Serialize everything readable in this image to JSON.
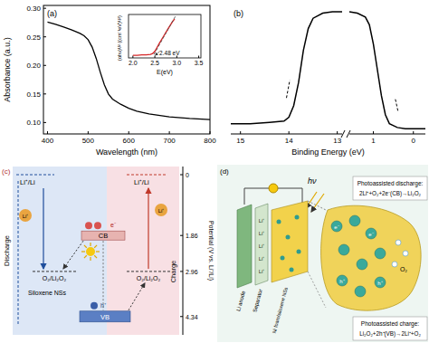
{
  "chart_data": [
    {
      "type": "line",
      "title": "(a)",
      "x_label": "Wavelength (nm)",
      "y_label": "Absorbance (a.u.)",
      "x": [
        400,
        420,
        440,
        460,
        480,
        490,
        500,
        510,
        520,
        530,
        540,
        550,
        560,
        580,
        600,
        620,
        650,
        700,
        750,
        800
      ],
      "values": [
        0.276,
        0.272,
        0.267,
        0.262,
        0.256,
        0.252,
        0.245,
        0.232,
        0.212,
        0.188,
        0.166,
        0.15,
        0.141,
        0.132,
        0.125,
        0.12,
        0.115,
        0.11,
        0.107,
        0.105
      ],
      "color": "#000000",
      "xlim": [
        390,
        800
      ],
      "ylim": [
        0.08,
        0.305
      ],
      "xticks": [
        400,
        500,
        600,
        700,
        800
      ],
      "yticks": [
        {
          "value": 0.1,
          "label": "0.10"
        },
        0.15,
        {
          "value": 0.2,
          "label": "0.20"
        },
        0.25,
        {
          "value": 0.3,
          "label": "0.30"
        }
      ],
      "inset": {
        "type": "line",
        "x_label": "E(eV)",
        "y_label": "(αhν)¹/² ((cm⁻¹eV)¹/²)",
        "x": [
          2.0,
          2.1,
          2.2,
          2.3,
          2.4,
          2.45,
          2.5,
          2.55,
          2.6,
          2.7,
          2.8,
          2.9,
          2.95
        ],
        "values": [
          0.06,
          0.06,
          0.07,
          0.07,
          0.08,
          0.1,
          0.15,
          0.24,
          0.33,
          0.5,
          0.67,
          0.83,
          0.9
        ],
        "color": "#d62728",
        "xlim": [
          1.9,
          3.55
        ],
        "ylim": [
          0,
          1
        ],
        "xticks": [
          {
            "value": 2,
            "label": "2.0"
          },
          2.5,
          {
            "value": 3,
            "label": "3.0"
          },
          3.5
        ],
        "tick_labels": "x",
        "tangent": {
          "x": [
            2.48,
            2.98
          ],
          "values": [
            0.08,
            0.98
          ],
          "line_style": "dashed",
          "color": "#555555"
        },
        "annotation": "2.48 eV"
      }
    },
    {
      "type": "line",
      "title": "(b)",
      "x_label": "Binding Energy (eV)",
      "xlim": [
        15.2,
        -0.3
      ],
      "x_segments": [
        [
          15.2,
          12.9
        ],
        [
          1.6,
          -0.3
        ]
      ],
      "xticks": [
        15,
        14,
        13,
        1,
        0
      ],
      "ylim": [
        0,
        1
      ],
      "tick_labels": "x",
      "series": [
        {
          "color": "#000000",
          "line_style": "solid",
          "x": [
            15.2,
            14.8,
            14.4,
            14.1,
            14.0,
            13.9,
            13.8,
            13.7,
            13.6,
            13.5,
            13.3,
            13.1,
            12.9,
            7,
            1.6,
            1.4,
            1.2,
            1.1,
            1.0,
            0.9,
            0.8,
            0.7,
            0.6,
            0.4,
            0.2,
            0.0,
            -0.3
          ],
          "values": [
            0.08,
            0.08,
            0.09,
            0.1,
            0.13,
            0.22,
            0.4,
            0.65,
            0.82,
            0.9,
            0.94,
            0.95,
            0.95,
            null,
            0.95,
            0.94,
            0.91,
            0.85,
            0.7,
            0.5,
            0.3,
            0.15,
            0.08,
            0.05,
            0.04,
            0.04,
            0.04
          ]
        },
        {
          "color": "#000000",
          "line_style": "dashed",
          "x": [
            14.05,
            13.98
          ],
          "values": [
            0.28,
            0.42
          ]
        },
        {
          "color": "#000000",
          "line_style": "dashed",
          "x": [
            0.45,
            0.38
          ],
          "values": [
            0.27,
            0.17
          ]
        }
      ]
    }
  ],
  "diagram_c": {
    "label": "(c)",
    "axis": {
      "label": "Potential (V vs. Li⁺/Li)",
      "ylim": [
        -0.25,
        4.9
      ],
      "yticks": [
        0,
        1.86,
        2.96,
        4.34
      ]
    },
    "levels": {
      "li": {
        "label": "Li⁺/Li",
        "value": 0
      },
      "cb": {
        "label": "CB",
        "value": 1.86
      },
      "redox": {
        "label": "O₂/Li₂O₂",
        "value": 2.96
      },
      "vb": {
        "label": "VB",
        "value": 4.34
      }
    },
    "li_right_label": "Li⁺/Li",
    "redox_right_label": "O₂/Li₂O₂",
    "discharge": "Discharge",
    "charge": "Charge",
    "ions": [
      "Li⁺",
      "Li⁺"
    ],
    "electron": "e⁻",
    "hole": "h⁺",
    "material": "Siloxene NSs"
  },
  "diagram_d": {
    "label": "(d)",
    "light": "hν",
    "components": [
      "Li anode",
      "Separator",
      "Ni foam/siloxene NSs"
    ],
    "ions": [
      "Li⁺",
      "Li⁺",
      "Li⁺",
      "Li⁺",
      "Li⁺"
    ],
    "discharge": {
      "title": "Photoassisted discharge:",
      "reaction": "2Li⁺+O₂+2e⁻(CB)→Li₂O₂"
    },
    "charge": {
      "title": "Photoassisted charge:",
      "reaction": "Li₂O₂+2h⁺(VB)→2Li⁺+O₂"
    },
    "gas": "O₂",
    "electrons": [
      "e⁻",
      "e⁻"
    ],
    "holes": [
      "h⁺",
      "h⁺"
    ]
  }
}
